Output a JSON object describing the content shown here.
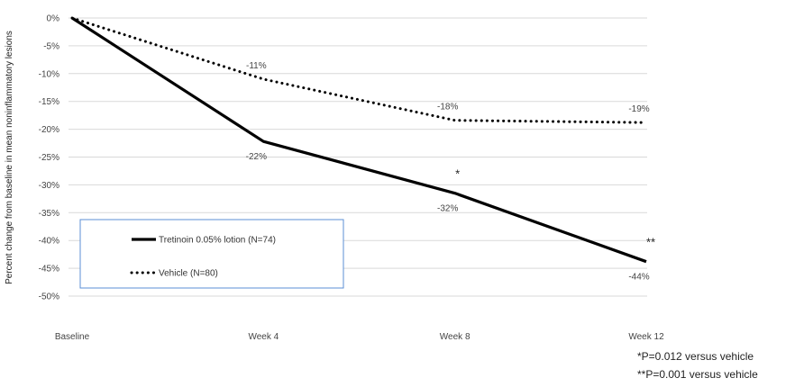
{
  "chart_data": {
    "type": "line",
    "ylabel": "Percent change from baseline in mean noninflammatory lesions",
    "x": [
      "Baseline",
      "Week 4",
      "Week 8",
      "Week 12"
    ],
    "ylim": [
      -50,
      0
    ],
    "y_tick_labels": [
      "0%",
      "-5%",
      "-10%",
      "-15%",
      "-20%",
      "-25%",
      "-30%",
      "-35%",
      "-40%",
      "-45%",
      "-50%"
    ],
    "grid": true,
    "legend_position": "bottom-left",
    "series": [
      {
        "name": "Tretinoin 0.05% lotion (N=74)",
        "style": "solid",
        "color": "#000000",
        "values": [
          0,
          -22.2,
          -31.5,
          -43.8
        ],
        "data_labels": [
          "",
          "-22%",
          "-32%",
          "-44%"
        ],
        "significance_markers": [
          "",
          "",
          "*",
          "**"
        ]
      },
      {
        "name": "Vehicle (N=80)",
        "style": "dotted",
        "color": "#000000",
        "values": [
          0,
          -11.0,
          -18.4,
          -18.8
        ],
        "data_labels": [
          "",
          "-11%",
          "-18%",
          "-19%"
        ]
      }
    ],
    "footnotes": [
      "*P=0.012 versus vehicle",
      "**P=0.001 versus vehicle"
    ]
  }
}
